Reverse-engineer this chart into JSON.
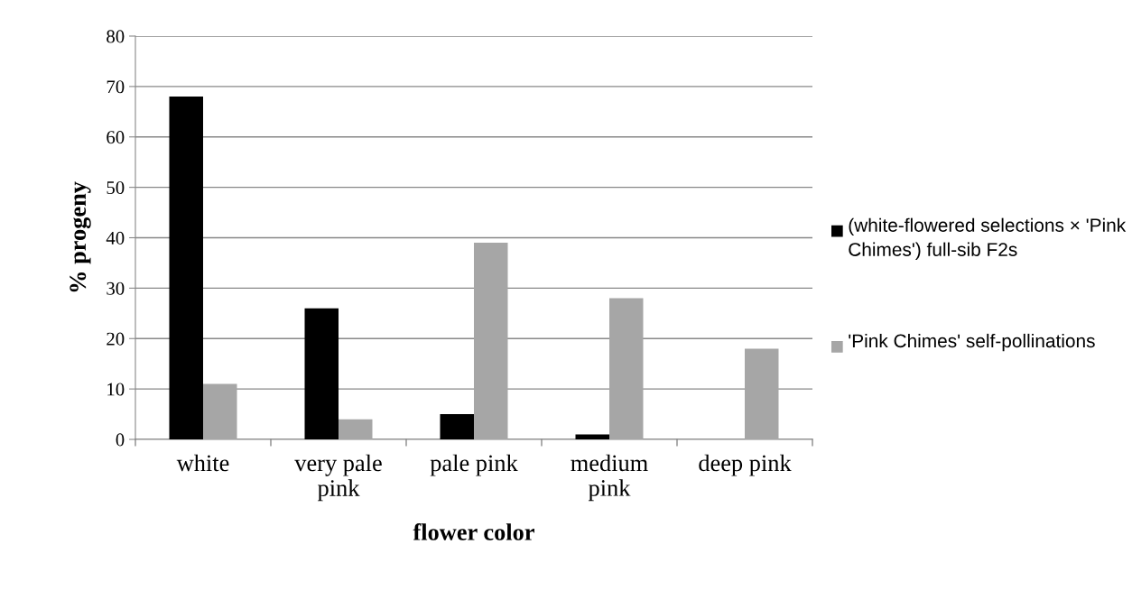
{
  "chart_data": {
    "type": "bar",
    "xlabel": "flower color",
    "ylabel": "% progeny",
    "categories": [
      "white",
      "very pale\npink",
      "pale pink",
      "medium\npink",
      "deep pink"
    ],
    "series": [
      {
        "name": "(white-flowered selections × 'Pink Chimes') full-sib F2s",
        "color": "#000000",
        "values": [
          68,
          26,
          5,
          1,
          0
        ]
      },
      {
        "name": "'Pink Chimes' self-pollinations",
        "color": "#a6a6a6",
        "values": [
          11,
          4,
          39,
          28,
          18
        ]
      }
    ],
    "ylim": [
      0,
      80
    ],
    "yticks": [
      0,
      10,
      20,
      30,
      40,
      50,
      60,
      70,
      80
    ],
    "grid": "y",
    "legend": "right"
  }
}
